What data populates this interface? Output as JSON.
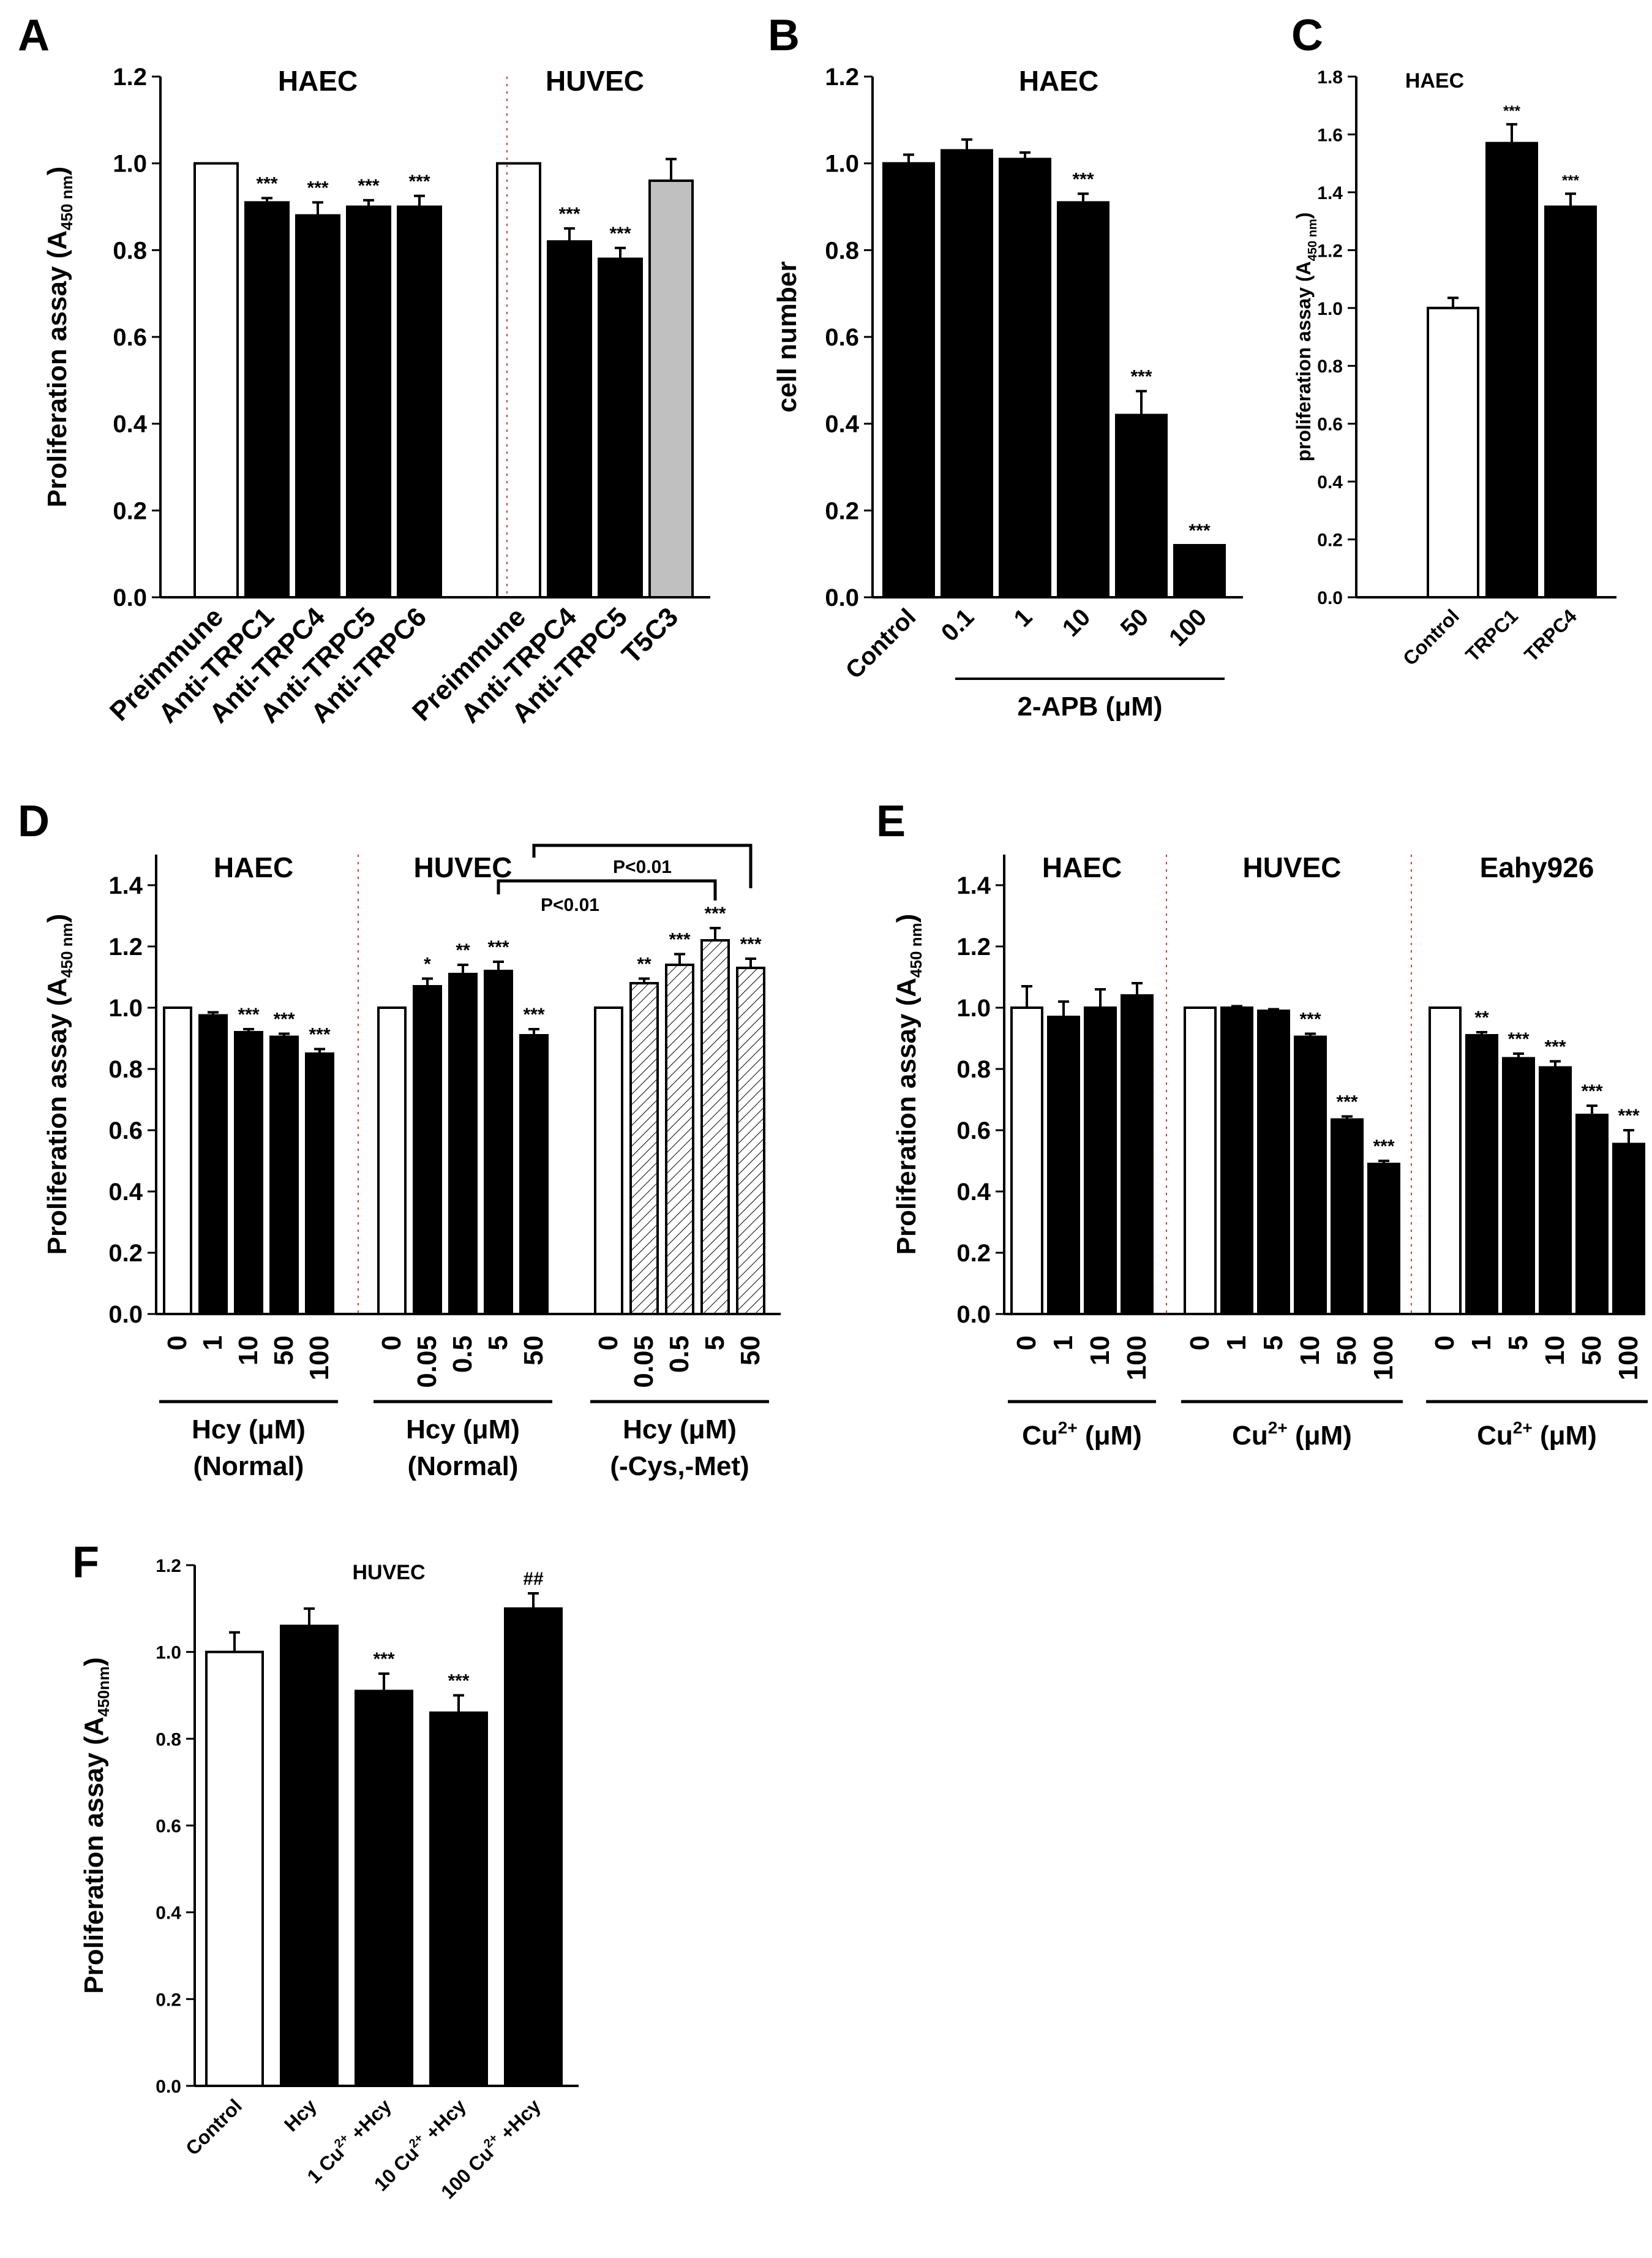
{
  "figure": {
    "panel_labels": [
      "A",
      "B",
      "C",
      "D",
      "E",
      "F"
    ]
  },
  "chart_data": [
    {
      "id": "A",
      "type": "bar",
      "ylabel": "Proliferation assay (A450 nm)",
      "ylabel_main": "Proliferation assay (A",
      "ylabel_sub": "450 nm",
      "ylabel_end": ")",
      "ylim": [
        0,
        1.2
      ],
      "yticks": [
        "0.0",
        "0.2",
        "0.4",
        "0.6",
        "0.8",
        "1.0",
        "1.2"
      ],
      "groups": [
        {
          "title": "HAEC",
          "bars": [
            {
              "label": "Preimmune",
              "value": 1.0,
              "err": 0,
              "fill": "white",
              "sig": ""
            },
            {
              "label": "Anti-TRPC1",
              "value": 0.91,
              "err": 0.01,
              "fill": "black",
              "sig": "***"
            },
            {
              "label": "Anti-TRPC4",
              "value": 0.88,
              "err": 0.03,
              "fill": "black",
              "sig": "***"
            },
            {
              "label": "Anti-TRPC5",
              "value": 0.9,
              "err": 0.015,
              "fill": "black",
              "sig": "***"
            },
            {
              "label": "Anti-TRPC6",
              "value": 0.9,
              "err": 0.025,
              "fill": "black",
              "sig": "***"
            }
          ]
        },
        {
          "title": "HUVEC",
          "bars": [
            {
              "label": "Preimmune",
              "value": 1.0,
              "err": 0,
              "fill": "white",
              "sig": ""
            },
            {
              "label": "Anti-TRPC4",
              "value": 0.82,
              "err": 0.03,
              "fill": "black",
              "sig": "***"
            },
            {
              "label": "Anti-TRPC5",
              "value": 0.78,
              "err": 0.025,
              "fill": "black",
              "sig": "***"
            },
            {
              "label": "T5C3",
              "value": 0.96,
              "err": 0.05,
              "fill": "gray",
              "sig": ""
            }
          ]
        }
      ]
    },
    {
      "id": "B",
      "type": "bar",
      "title": "HAEC",
      "ylabel": "cell number",
      "ylim": [
        0,
        1.2
      ],
      "yticks": [
        "0.0",
        "0.2",
        "0.4",
        "0.6",
        "0.8",
        "1.0",
        "1.2"
      ],
      "group_label": "2-APB (μM)",
      "bars": [
        {
          "label": "Control",
          "value": 1.0,
          "err": 0.02,
          "fill": "black",
          "sig": ""
        },
        {
          "label": "0.1",
          "value": 1.03,
          "err": 0.025,
          "fill": "black",
          "sig": ""
        },
        {
          "label": "1",
          "value": 1.01,
          "err": 0.015,
          "fill": "black",
          "sig": ""
        },
        {
          "label": "10",
          "value": 0.91,
          "err": 0.02,
          "fill": "black",
          "sig": "***"
        },
        {
          "label": "50",
          "value": 0.42,
          "err": 0.055,
          "fill": "black",
          "sig": "***"
        },
        {
          "label": "100",
          "value": 0.12,
          "err": 0,
          "fill": "black",
          "sig": "***"
        }
      ]
    },
    {
      "id": "C",
      "type": "bar",
      "title": "HAEC",
      "ylabel": "proliferation assay (A450 nm)",
      "ylabel_main": "proliferation assay (A",
      "ylabel_sub": "450 nm",
      "ylabel_end": ")",
      "ylim": [
        0,
        1.8
      ],
      "yticks": [
        "0.0",
        "0.2",
        "0.4",
        "0.6",
        "0.8",
        "1.0",
        "1.2",
        "1.4",
        "1.6",
        "1.8"
      ],
      "bars": [
        {
          "label": "Control",
          "value": 1.0,
          "err": 0.035,
          "fill": "white",
          "sig": ""
        },
        {
          "label": "TRPC1",
          "value": 1.57,
          "err": 0.065,
          "fill": "black",
          "sig": "***"
        },
        {
          "label": "TRPC4",
          "value": 1.35,
          "err": 0.045,
          "fill": "black",
          "sig": "***"
        }
      ]
    },
    {
      "id": "D",
      "type": "bar",
      "ylabel": "Proliferation assay (A450 nm)",
      "ylabel_main": "Proliferation assay (A",
      "ylabel_sub": "450 nm",
      "ylabel_end": ")",
      "ylim": [
        0,
        1.5
      ],
      "yticks": [
        "0.0",
        "0.2",
        "0.4",
        "0.6",
        "0.8",
        "1.0",
        "1.2",
        "1.4"
      ],
      "brackets": [
        "P<0.01",
        "P<0.01"
      ],
      "groups": [
        {
          "title": "HAEC",
          "label1": "Hcy (μM)",
          "label2": "(Normal)",
          "bars": [
            {
              "label": "0",
              "value": 1.0,
              "err": 0,
              "fill": "white",
              "sig": ""
            },
            {
              "label": "1",
              "value": 0.975,
              "err": 0.01,
              "fill": "black",
              "sig": ""
            },
            {
              "label": "10",
              "value": 0.92,
              "err": 0.01,
              "fill": "black",
              "sig": "***"
            },
            {
              "label": "50",
              "value": 0.905,
              "err": 0.01,
              "fill": "black",
              "sig": "***"
            },
            {
              "label": "100",
              "value": 0.85,
              "err": 0.015,
              "fill": "black",
              "sig": "***"
            }
          ]
        },
        {
          "title": "HUVEC",
          "label1": "Hcy (μM)",
          "label2": "(Normal)",
          "bars": [
            {
              "label": "0",
              "value": 1.0,
              "err": 0,
              "fill": "white",
              "sig": ""
            },
            {
              "label": "0.05",
              "value": 1.07,
              "err": 0.025,
              "fill": "black",
              "sig": "*"
            },
            {
              "label": "0.5",
              "value": 1.11,
              "err": 0.03,
              "fill": "black",
              "sig": "**"
            },
            {
              "label": "5",
              "value": 1.12,
              "err": 0.03,
              "fill": "black",
              "sig": "***"
            },
            {
              "label": "50",
              "value": 0.91,
              "err": 0.02,
              "fill": "black",
              "sig": "***"
            }
          ]
        },
        {
          "title": "",
          "label1": "Hcy (μM)",
          "label2": "(-Cys,-Met)",
          "bars": [
            {
              "label": "0",
              "value": 1.0,
              "err": 0,
              "fill": "white",
              "sig": ""
            },
            {
              "label": "0.05",
              "value": 1.08,
              "err": 0.015,
              "fill": "hatch",
              "sig": "**"
            },
            {
              "label": "0.5",
              "value": 1.14,
              "err": 0.035,
              "fill": "hatch",
              "sig": "***"
            },
            {
              "label": "5",
              "value": 1.22,
              "err": 0.04,
              "fill": "hatch",
              "sig": "***"
            },
            {
              "label": "50",
              "value": 1.13,
              "err": 0.03,
              "fill": "hatch",
              "sig": "***"
            }
          ]
        }
      ]
    },
    {
      "id": "E",
      "type": "bar",
      "ylabel": "Proliferation assay (A450 nm)",
      "ylabel_main": "Proliferation assay (A",
      "ylabel_sub": "450 nm",
      "ylabel_end": ")",
      "ylim": [
        0,
        1.5
      ],
      "yticks": [
        "0.0",
        "0.2",
        "0.4",
        "0.6",
        "0.8",
        "1.0",
        "1.2",
        "1.4"
      ],
      "groups": [
        {
          "title": "HAEC",
          "label_main": "Cu",
          "label_sup": "2+",
          "label_end": " (μM)",
          "bars": [
            {
              "label": "0",
              "value": 1.0,
              "err": 0.07,
              "fill": "white",
              "sig": ""
            },
            {
              "label": "1",
              "value": 0.97,
              "err": 0.05,
              "fill": "black",
              "sig": ""
            },
            {
              "label": "10",
              "value": 1.0,
              "err": 0.06,
              "fill": "black",
              "sig": ""
            },
            {
              "label": "100",
              "value": 1.04,
              "err": 0.04,
              "fill": "black",
              "sig": ""
            }
          ]
        },
        {
          "title": "HUVEC",
          "label_main": "Cu",
          "label_sup": "2+",
          "label_end": " (μM)",
          "bars": [
            {
              "label": "0",
              "value": 1.0,
              "err": 0,
              "fill": "white",
              "sig": ""
            },
            {
              "label": "1",
              "value": 1.0,
              "err": 0.005,
              "fill": "black",
              "sig": ""
            },
            {
              "label": "5",
              "value": 0.99,
              "err": 0.005,
              "fill": "black",
              "sig": ""
            },
            {
              "label": "10",
              "value": 0.905,
              "err": 0.01,
              "fill": "black",
              "sig": "***"
            },
            {
              "label": "50",
              "value": 0.635,
              "err": 0.01,
              "fill": "black",
              "sig": "***"
            },
            {
              "label": "100",
              "value": 0.49,
              "err": 0.01,
              "fill": "black",
              "sig": "***"
            }
          ]
        },
        {
          "title": "Eahy926",
          "label_main": "Cu",
          "label_sup": "2+",
          "label_end": " (μM)",
          "bars": [
            {
              "label": "0",
              "value": 1.0,
              "err": 0,
              "fill": "white",
              "sig": ""
            },
            {
              "label": "1",
              "value": 0.91,
              "err": 0.01,
              "fill": "black",
              "sig": "**"
            },
            {
              "label": "5",
              "value": 0.835,
              "err": 0.015,
              "fill": "black",
              "sig": "***"
            },
            {
              "label": "10",
              "value": 0.805,
              "err": 0.02,
              "fill": "black",
              "sig": "***"
            },
            {
              "label": "50",
              "value": 0.65,
              "err": 0.03,
              "fill": "black",
              "sig": "***"
            },
            {
              "label": "100",
              "value": 0.555,
              "err": 0.045,
              "fill": "black",
              "sig": "***"
            }
          ]
        }
      ]
    },
    {
      "id": "F",
      "type": "bar",
      "title": "HUVEC",
      "ylabel": "Proliferation assay (A450nm)",
      "ylabel_main": "Proliferation assay (A",
      "ylabel_sub": "450nm",
      "ylabel_end": ")",
      "ylim": [
        0,
        1.2
      ],
      "yticks": [
        "0.0",
        "0.2",
        "0.4",
        "0.6",
        "0.8",
        "1.0",
        "1.2"
      ],
      "bars": [
        {
          "label": "Control",
          "value": 1.0,
          "err": 0.045,
          "fill": "white",
          "sig": ""
        },
        {
          "label": "Hcy",
          "value": 1.06,
          "err": 0.04,
          "fill": "black",
          "sig": ""
        },
        {
          "label": "1 Cu2+ +Hcy",
          "lab_pre": "1 Cu",
          "lab_sup": "2+",
          "lab_post": " +Hcy",
          "value": 0.91,
          "err": 0.04,
          "fill": "black",
          "sig": "***"
        },
        {
          "label": "10 Cu2+ +Hcy",
          "lab_pre": "10 Cu",
          "lab_sup": "2+",
          "lab_post": " +Hcy",
          "value": 0.86,
          "err": 0.04,
          "fill": "black",
          "sig": "***"
        },
        {
          "label": "100 Cu2+ +Hcy",
          "lab_pre": "100 Cu",
          "lab_sup": "2+",
          "lab_post": " +Hcy",
          "value": 1.1,
          "err": 0.035,
          "fill": "black",
          "sig": "##"
        }
      ]
    }
  ]
}
